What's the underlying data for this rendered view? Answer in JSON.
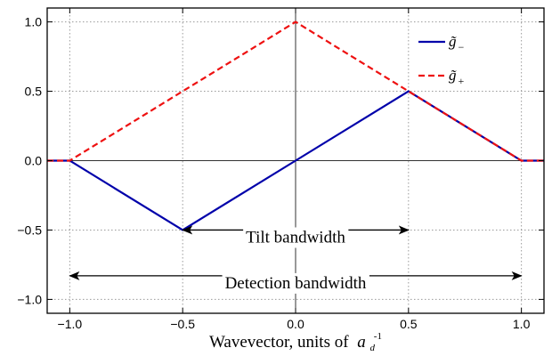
{
  "chart_data": {
    "type": "line",
    "title": "",
    "xlabel": "Wavevector, units of",
    "xlabel_symbol": "a",
    "xlabel_subscript": "d",
    "xlabel_superscript": "-1",
    "ylabel": "",
    "xlim": [
      -1.1,
      1.1
    ],
    "ylim": [
      -1.1,
      1.1
    ],
    "grid": true,
    "grid_style": "dotted",
    "legend_position": "top-right",
    "x_ticks": [
      -1.0,
      -0.5,
      0.0,
      0.5,
      1.0
    ],
    "x_tick_labels": [
      "−1.0",
      "−0.5",
      "0.0",
      "0.5",
      "1.0"
    ],
    "y_ticks": [
      -1.0,
      -0.5,
      0.0,
      0.5,
      1.0
    ],
    "y_tick_labels": [
      "−1.0",
      "−0.5",
      "0.0",
      "0.5",
      "1.0"
    ],
    "series": [
      {
        "name": "g̃",
        "name_sub": "−",
        "color": "#0000aa",
        "style": "solid",
        "x": [
          -1.1,
          -1.0,
          -0.5,
          0.0,
          0.5,
          1.0,
          1.1
        ],
        "y": [
          0.0,
          0.0,
          -0.5,
          0.0,
          0.5,
          0.0,
          0.0
        ]
      },
      {
        "name": "g̃",
        "name_sub": "+",
        "color": "#ee1111",
        "style": "dashed",
        "x": [
          -1.1,
          -1.0,
          0.0,
          1.0,
          1.1
        ],
        "y": [
          0.0,
          0.0,
          1.0,
          0.0,
          0.0
        ]
      }
    ],
    "annotations": [
      {
        "text": "Tilt bandwidth",
        "x_from": -0.5,
        "x_to": 0.5,
        "y_arrow": -0.5,
        "y_text": -0.59
      },
      {
        "text": "Detection bandwidth",
        "x_from": -1.0,
        "x_to": 1.0,
        "y_arrow": -0.83,
        "y_text": -0.92
      }
    ],
    "zero_lines": true
  }
}
